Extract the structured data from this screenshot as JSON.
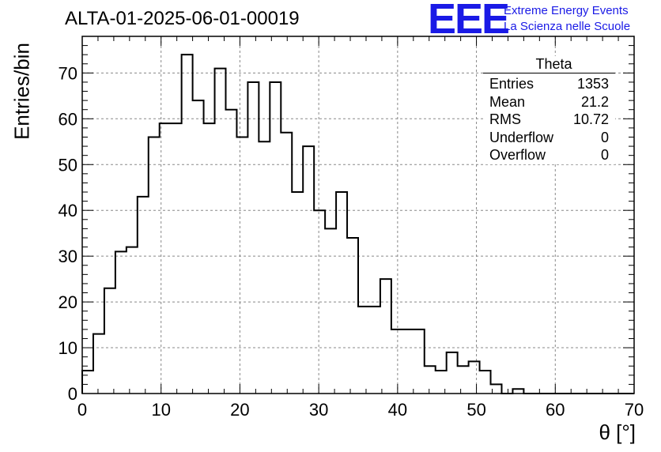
{
  "header": {
    "title": "ALTA-01-2025-06-01-00019",
    "logo_text": "EEE",
    "logo_line1": "Extreme Energy Events",
    "logo_line2": "La Scienza nelle Scuole"
  },
  "stats_box": {
    "title": "Theta",
    "rows": [
      {
        "label": "Entries",
        "value": "1353"
      },
      {
        "label": "Mean",
        "value": "21.2"
      },
      {
        "label": "RMS",
        "value": "10.72"
      },
      {
        "label": "Underflow",
        "value": "0"
      },
      {
        "label": "Overflow",
        "value": "0"
      }
    ]
  },
  "chart_data": {
    "type": "bar",
    "style": "step-histogram",
    "ylabel": "Entries/bin",
    "xlabel": "θ [°]",
    "xlim": [
      0,
      70
    ],
    "ylim": [
      0,
      78
    ],
    "bin_width": 1.4,
    "x_ticks": [
      0,
      10,
      20,
      30,
      40,
      50,
      60,
      70
    ],
    "y_ticks": [
      0,
      10,
      20,
      30,
      40,
      50,
      60,
      70
    ],
    "grid": true,
    "line_color": "#000000",
    "values": [
      5,
      13,
      23,
      31,
      32,
      43,
      56,
      59,
      59,
      74,
      64,
      59,
      71,
      62,
      56,
      68,
      55,
      68,
      57,
      44,
      54,
      40,
      36,
      44,
      34,
      19,
      19,
      25,
      14,
      14,
      14,
      6,
      5,
      9,
      6,
      7,
      5,
      2,
      0,
      1,
      0,
      0,
      0,
      0,
      0,
      0,
      0,
      0,
      0,
      0
    ]
  }
}
